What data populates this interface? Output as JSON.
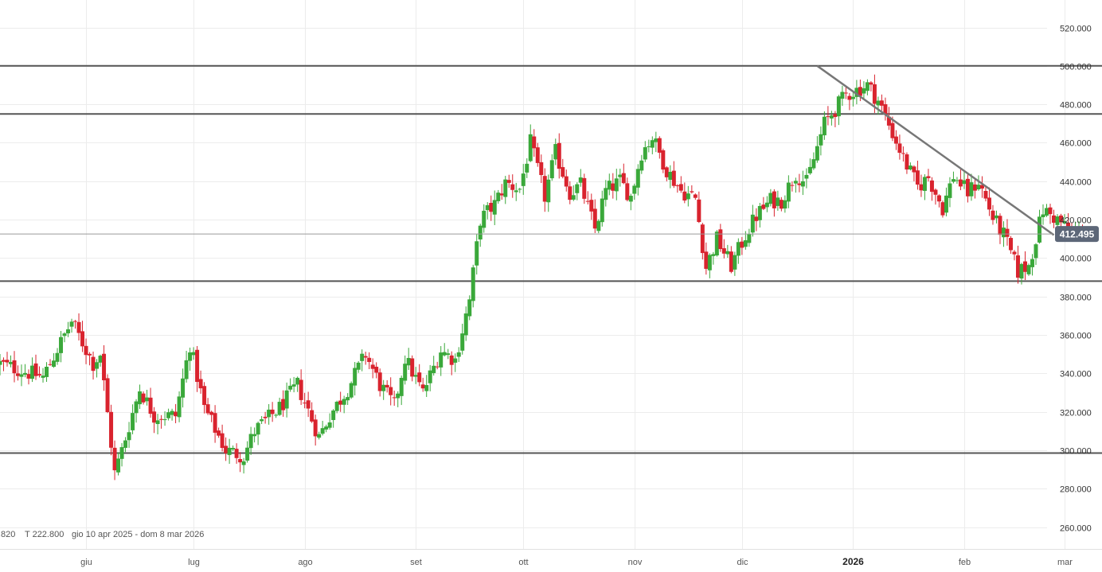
{
  "chart_data": {
    "type": "candlestick",
    "title": "",
    "xlabel": "",
    "ylabel": "",
    "ylim": [
      248000,
      532000
    ],
    "xlim": [
      "2025-05-08",
      "2026-03-08"
    ],
    "y_ticks": [
      260000,
      280000,
      300000,
      320000,
      340000,
      360000,
      380000,
      400000,
      420000,
      440000,
      460000,
      480000,
      500000,
      520000
    ],
    "y_tick_labels": [
      "260.000",
      "280.000",
      "300.000",
      "320.000",
      "340.000",
      "360.000",
      "380.000",
      "400.000",
      "420.000",
      "440.000",
      "460.000",
      "480.000",
      "500.000",
      "520.000"
    ],
    "x_ticks": [
      {
        "date": "2025-06-01",
        "label": "giu",
        "bold": false
      },
      {
        "date": "2025-07-01",
        "label": "lug",
        "bold": false
      },
      {
        "date": "2025-08-01",
        "label": "ago",
        "bold": false
      },
      {
        "date": "2025-09-01",
        "label": "set",
        "bold": false
      },
      {
        "date": "2025-10-01",
        "label": "ott",
        "bold": false
      },
      {
        "date": "2025-11-01",
        "label": "nov",
        "bold": false
      },
      {
        "date": "2025-12-01",
        "label": "dic",
        "bold": false
      },
      {
        "date": "2026-01-01",
        "label": "2026",
        "bold": true
      },
      {
        "date": "2026-02-01",
        "label": "feb",
        "bold": false
      },
      {
        "date": "2026-03-01",
        "label": "mar",
        "bold": false
      }
    ],
    "grid": true,
    "horizontal_levels": [
      500000,
      475000,
      388000,
      298500
    ],
    "trendline": {
      "from": [
        "2025-12-22",
        500000
      ],
      "to": [
        "2026-02-26",
        412000
      ]
    },
    "last_price": 412495,
    "last_price_label": "412.495",
    "colors": {
      "up": "#3aa83a",
      "down": "#d9232e",
      "level": "#555555",
      "trend": "#777777",
      "price_bg": "#5d6778",
      "grid": "#ececec",
      "last_line": "#9a9a9a"
    },
    "anchors": [
      [
        "2025-05-08",
        345000
      ],
      [
        "2025-05-20",
        338000
      ],
      [
        "2025-05-28",
        367000
      ],
      [
        "2025-06-03",
        345000
      ],
      [
        "2025-06-05",
        350000
      ],
      [
        "2025-06-09",
        288000
      ],
      [
        "2025-06-11",
        300000
      ],
      [
        "2025-06-16",
        332000
      ],
      [
        "2025-06-20",
        318000
      ],
      [
        "2025-06-26",
        318000
      ],
      [
        "2025-06-30",
        355000
      ],
      [
        "2025-07-04",
        322000
      ],
      [
        "2025-07-10",
        300000
      ],
      [
        "2025-07-15",
        297000
      ],
      [
        "2025-07-18",
        310000
      ],
      [
        "2025-07-25",
        322000
      ],
      [
        "2025-07-30",
        334000
      ],
      [
        "2025-08-05",
        307000
      ],
      [
        "2025-08-08",
        318000
      ],
      [
        "2025-08-13",
        332000
      ],
      [
        "2025-08-18",
        350000
      ],
      [
        "2025-08-22",
        334000
      ],
      [
        "2025-08-26",
        323000
      ],
      [
        "2025-08-29",
        348000
      ],
      [
        "2025-09-03",
        330000
      ],
      [
        "2025-09-08",
        352000
      ],
      [
        "2025-09-12",
        347000
      ],
      [
        "2025-09-16",
        378000
      ],
      [
        "2025-09-19",
        420000
      ],
      [
        "2025-09-23",
        428000
      ],
      [
        "2025-09-26",
        439000
      ],
      [
        "2025-09-30",
        436000
      ],
      [
        "2025-10-03",
        460000
      ],
      [
        "2025-10-07",
        432000
      ],
      [
        "2025-10-10",
        455000
      ],
      [
        "2025-10-14",
        434000
      ],
      [
        "2025-10-17",
        438000
      ],
      [
        "2025-10-21",
        415000
      ],
      [
        "2025-10-24",
        435000
      ],
      [
        "2025-10-28",
        440000
      ],
      [
        "2025-10-31",
        432000
      ],
      [
        "2025-11-03",
        455000
      ],
      [
        "2025-11-06",
        463000
      ],
      [
        "2025-11-10",
        446000
      ],
      [
        "2025-11-14",
        435000
      ],
      [
        "2025-11-18",
        431000
      ],
      [
        "2025-11-21",
        395000
      ],
      [
        "2025-11-24",
        410000
      ],
      [
        "2025-11-28",
        396000
      ],
      [
        "2025-12-02",
        412000
      ],
      [
        "2025-12-05",
        422000
      ],
      [
        "2025-12-09",
        430000
      ],
      [
        "2025-12-12",
        430000
      ],
      [
        "2025-12-16",
        444000
      ],
      [
        "2025-12-19",
        439000
      ],
      [
        "2025-12-24",
        470000
      ],
      [
        "2025-12-30",
        485000
      ],
      [
        "2026-01-05",
        490000
      ],
      [
        "2026-01-08",
        482000
      ],
      [
        "2026-01-12",
        465000
      ],
      [
        "2026-01-15",
        452000
      ],
      [
        "2026-01-19",
        437000
      ],
      [
        "2026-01-22",
        442000
      ],
      [
        "2026-01-26",
        426000
      ],
      [
        "2026-01-29",
        443000
      ],
      [
        "2026-02-02",
        434000
      ],
      [
        "2026-02-05",
        440000
      ],
      [
        "2026-02-09",
        421000
      ],
      [
        "2026-02-12",
        412000
      ],
      [
        "2026-02-16",
        393000
      ],
      [
        "2026-02-19",
        396000
      ],
      [
        "2026-02-23",
        425000
      ],
      [
        "2026-02-27",
        420000
      ],
      [
        "2026-03-03",
        413000
      ],
      [
        "2026-03-06",
        412495
      ]
    ]
  },
  "info": {
    "prefix": ".820",
    "t_label": "T 222.800",
    "range": "gio 10 apr 2025 - dom 8 mar 2026"
  }
}
